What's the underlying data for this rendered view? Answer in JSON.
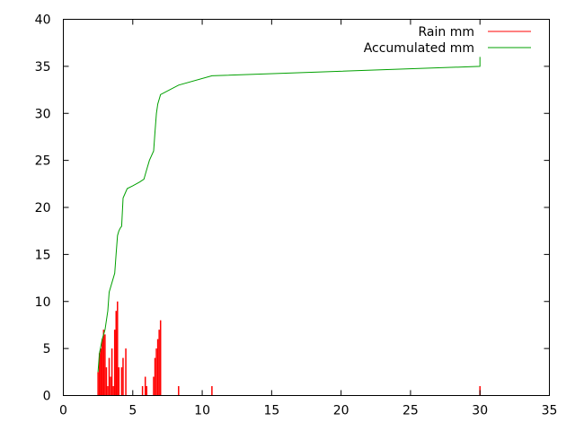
{
  "chart_data": {
    "type": "bar+line",
    "xlim": [
      0,
      35
    ],
    "ylim": [
      0,
      40
    ],
    "x_ticks": [
      "0",
      "5",
      "10",
      "15",
      "20",
      "25",
      "30",
      "35"
    ],
    "y_ticks": [
      "0",
      "5",
      "10",
      "15",
      "20",
      "25",
      "30",
      "35",
      "40"
    ],
    "grid": false,
    "legend_position": "top-right",
    "series": [
      {
        "name": "Rain mm",
        "kind": "impulses",
        "color": "#ff0000",
        "points": [
          [
            2.5,
            2.5
          ],
          [
            2.6,
            4.5
          ],
          [
            2.7,
            5
          ],
          [
            2.8,
            6
          ],
          [
            2.9,
            7
          ],
          [
            3.0,
            6.5
          ],
          [
            3.1,
            3
          ],
          [
            3.2,
            1
          ],
          [
            3.3,
            4
          ],
          [
            3.4,
            2
          ],
          [
            3.5,
            5
          ],
          [
            3.6,
            1
          ],
          [
            3.7,
            7
          ],
          [
            3.8,
            9
          ],
          [
            3.9,
            10
          ],
          [
            4.0,
            3
          ],
          [
            4.2,
            3
          ],
          [
            4.3,
            4
          ],
          [
            4.5,
            5
          ],
          [
            5.7,
            1
          ],
          [
            5.9,
            2
          ],
          [
            6.0,
            1
          ],
          [
            6.5,
            2
          ],
          [
            6.6,
            4
          ],
          [
            6.7,
            5
          ],
          [
            6.8,
            6
          ],
          [
            6.9,
            7
          ],
          [
            7.0,
            8
          ],
          [
            8.3,
            1
          ],
          [
            10.7,
            1
          ],
          [
            30.0,
            1
          ]
        ]
      },
      {
        "name": "Accumulated mm",
        "kind": "line",
        "color": "#00a000",
        "points": [
          [
            2.5,
            2.5
          ],
          [
            2.6,
            4.5
          ],
          [
            2.8,
            6
          ],
          [
            3.0,
            7
          ],
          [
            3.2,
            9
          ],
          [
            3.3,
            11
          ],
          [
            3.5,
            12
          ],
          [
            3.7,
            13
          ],
          [
            3.8,
            15
          ],
          [
            3.9,
            17
          ],
          [
            4.0,
            17.5
          ],
          [
            4.1,
            17.8
          ],
          [
            4.2,
            18
          ],
          [
            4.3,
            21
          ],
          [
            4.6,
            22
          ],
          [
            5.0,
            22.3
          ],
          [
            5.5,
            22.7
          ],
          [
            5.8,
            23
          ],
          [
            6.0,
            24
          ],
          [
            6.2,
            25
          ],
          [
            6.5,
            26
          ],
          [
            6.6,
            28
          ],
          [
            6.7,
            30
          ],
          [
            6.8,
            31
          ],
          [
            7.0,
            32
          ],
          [
            8.3,
            33
          ],
          [
            10.7,
            34
          ],
          [
            30.0,
            35
          ],
          [
            30.0,
            36
          ]
        ]
      }
    ]
  }
}
